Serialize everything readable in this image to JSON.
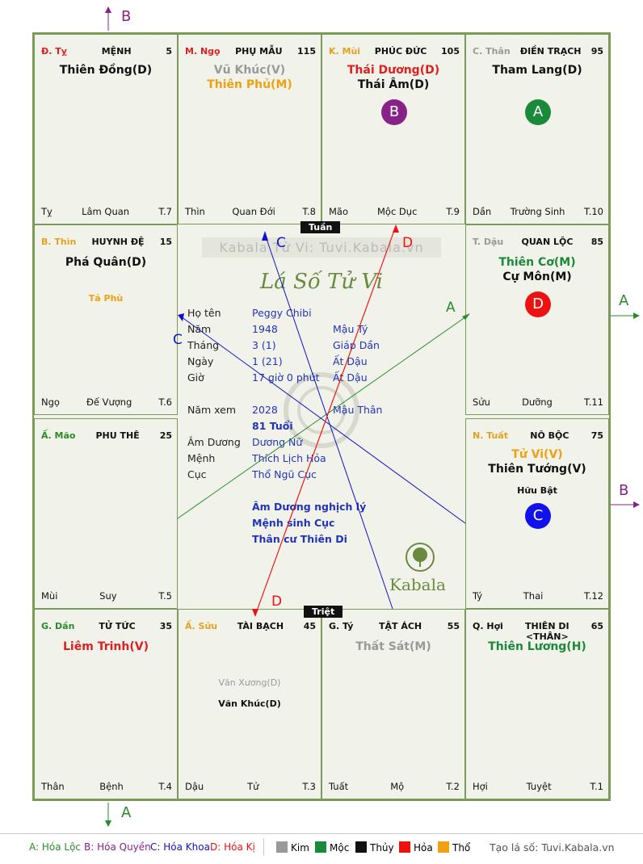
{
  "watermark": "Kabala Tử Vi: Tuvi.Kabala.vn",
  "logo_text": "Lá Số Tử Vi",
  "brand": "Kabala",
  "tuan": "Tuần",
  "triet": "Triệt",
  "cells": [
    {
      "can_chi": "Đ. Tỵ",
      "palace": "MỆNH",
      "num": "5",
      "stars": [
        "Thiên Đồng(D)"
      ],
      "minor": [],
      "branch": "Tỵ",
      "phase": "Lâm Quan",
      "tag": "T.7"
    },
    {
      "can_chi": "M. Ngọ",
      "palace": "PHỤ MẪU",
      "num": "115",
      "stars": [
        "Vũ Khúc(V)",
        "Thiên Phủ(M)"
      ],
      "minor": [],
      "branch": "Thìn",
      "phase": "Quan Đới",
      "tag": "T.8"
    },
    {
      "can_chi": "K. Mùi",
      "palace": "PHÚC ĐỨC",
      "num": "105",
      "stars": [
        "Thái Dương(D)",
        "Thái Âm(D)"
      ],
      "minor": [],
      "branch": "Mão",
      "phase": "Mộc Dục",
      "tag": "T.9",
      "circle": "B"
    },
    {
      "can_chi": "C. Thân",
      "palace": "ĐIỀN TRẠCH",
      "num": "95",
      "stars": [
        "Tham Lang(D)"
      ],
      "minor": [],
      "branch": "Dần",
      "phase": "Trường Sinh",
      "tag": "T.10",
      "circle": "A"
    },
    {
      "can_chi": "B. Thìn",
      "palace": "HUYNH ĐỆ",
      "num": "15",
      "stars": [
        "Phá Quân(D)"
      ],
      "minor": [
        "Tả Phù"
      ],
      "branch": "Ngọ",
      "phase": "Đế Vượng",
      "tag": "T.6"
    },
    {
      "can_chi": "T. Dậu",
      "palace": "QUAN LỘC",
      "num": "85",
      "stars": [
        "Thiên Cơ(M)",
        "Cự Môn(M)"
      ],
      "minor": [],
      "branch": "Sửu",
      "phase": "Dưỡng",
      "tag": "T.11",
      "circle": "D"
    },
    {
      "can_chi": "Ấ. Mão",
      "palace": "PHU THÊ",
      "num": "25",
      "stars": [],
      "minor": [],
      "branch": "Mùi",
      "phase": "Suy",
      "tag": "T.5"
    },
    {
      "can_chi": "N. Tuất",
      "palace": "NÔ BỘC",
      "num": "75",
      "stars": [
        "Tử Vi(V)",
        "Thiên Tướng(V)"
      ],
      "minor": [
        "Hữu Bật"
      ],
      "branch": "Tý",
      "phase": "Thai",
      "tag": "T.12",
      "circle": "C"
    },
    {
      "can_chi": "G. Dần",
      "palace": "TỬ TỨC",
      "num": "35",
      "stars": [
        "Liêm Trinh(V)"
      ],
      "minor": [],
      "branch": "Thân",
      "phase": "Bệnh",
      "tag": "T.4"
    },
    {
      "can_chi": "Ấ. Sửu",
      "palace": "TÀI BẠCH",
      "num": "45",
      "stars": [],
      "minor": [
        "Văn Xương(D)",
        "Văn Khúc(D)"
      ],
      "branch": "Dậu",
      "phase": "Tử",
      "tag": "T.3"
    },
    {
      "can_chi": "G. Tý",
      "palace": "TẬT ÁCH",
      "num": "55",
      "stars": [
        "Thất Sát(M)"
      ],
      "minor": [],
      "branch": "Tuất",
      "phase": "Mộ",
      "tag": "T.2"
    },
    {
      "can_chi": "Q. Hợi",
      "palace": "THIÊN DI <THÂN>",
      "num": "65",
      "stars": [
        "Thiên Lương(H)"
      ],
      "minor": [],
      "branch": "Hợi",
      "phase": "Tuyệt",
      "tag": "T.1"
    }
  ],
  "info": {
    "ho_ten_label": "Họ tên",
    "ho_ten": "Peggy Chibi",
    "nam_label": "Năm",
    "nam": "1948",
    "nam_cc": "Mậu Tý",
    "thang_label": "Tháng",
    "thang": "3  (1)",
    "thang_cc": "Giáp Dần",
    "ngay_label": "Ngày",
    "ngay": "1  (21)",
    "ngay_cc": "Ất Dậu",
    "gio_label": "Giờ",
    "gio": "17 giờ 0 phút",
    "gio_cc": "Ất Dậu",
    "namxem_label": "Năm xem",
    "namxem": "2028",
    "namxem_cc": "Mậu Thân",
    "tuoi": "81 Tuổi",
    "amduong_label": "Âm Dương",
    "amduong": "Dương Nữ",
    "menh_label": "Mệnh",
    "menh": "Thích Lịch Hỏa",
    "cuc_label": "Cục",
    "cuc": "Thổ Ngũ Cục",
    "note1": "Âm Dương nghịch lý",
    "note2": "Mệnh sinh Cục",
    "note3": "Thân cư Thiên Di"
  },
  "arrows": {
    "top": "B",
    "right_top": "A",
    "right_mid": "B",
    "bottom": "A"
  },
  "legend": {
    "a": "A: Hóa Lộc",
    "b": "B: Hóa Quyền",
    "c": "C: Hóa Khoa",
    "d": "D: Hóa Kị",
    "kim": "Kim",
    "moc": "Mộc",
    "thuy": "Thủy",
    "hoa": "Hỏa",
    "tho": "Thổ",
    "site": "Tạo lá số: Tuvi.Kabala.vn"
  },
  "colors": {
    "kim": "#999999",
    "moc": "#1a8a3a",
    "thuy": "#111111",
    "hoa": "#ee1111",
    "tho": "#f0a010"
  }
}
